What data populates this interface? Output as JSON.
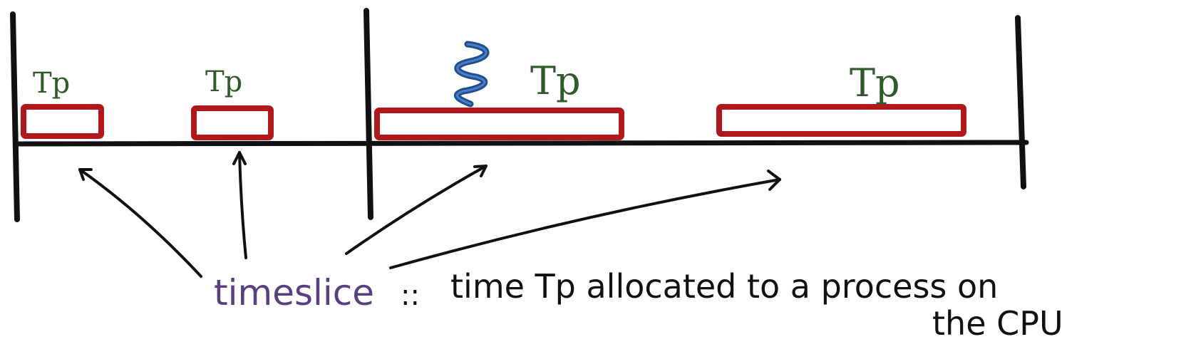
{
  "colors": {
    "ink": "#111111",
    "slice_outline": "#b2181b",
    "label_green": "#2f5a2a",
    "key_purple": "#5a3f80",
    "squiggle_blue": "#1f4f8f"
  },
  "slices": [
    {
      "label": "Tp"
    },
    {
      "label": "Tp"
    },
    {
      "label": "Tp"
    },
    {
      "label": "Tp"
    }
  ],
  "icons": {
    "squiggle": "wavy-line-icon"
  },
  "caption": {
    "term": "timeslice",
    "separator": "::",
    "definition_line1": "time Tp allocated to a process on",
    "definition_line2": "the CPU"
  }
}
